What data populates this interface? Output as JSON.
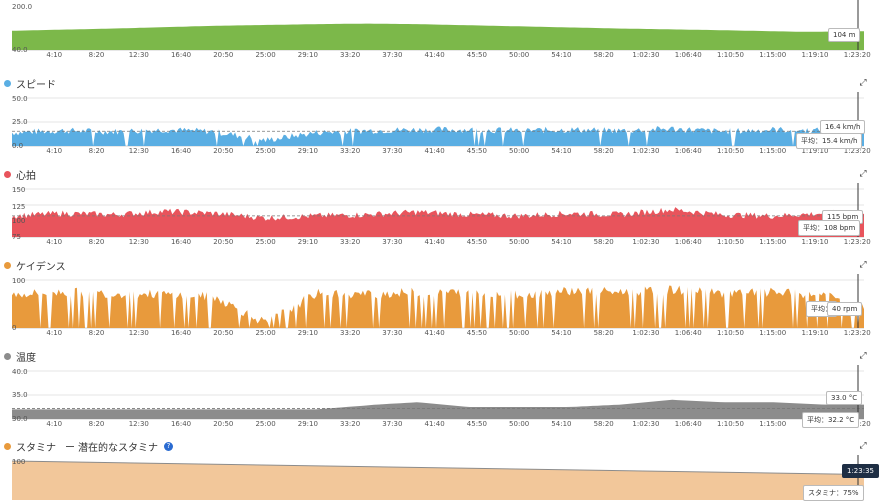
{
  "time_ticks": [
    "4:10",
    "8:20",
    "12:30",
    "16:40",
    "20:50",
    "25:00",
    "29:10",
    "33:20",
    "37:30",
    "41:40",
    "45:50",
    "50:00",
    "54:10",
    "58:20",
    "1:02:30",
    "1:06:40",
    "1:10:50",
    "1:15:00",
    "1:19:10",
    "1:23:20"
  ],
  "colors": {
    "elevation": "#7cb84a",
    "speed": "#5aaee3",
    "heart_rate": "#e8545c",
    "cadence": "#e89a3c",
    "temperature": "#8c8c8c",
    "stamina": "#f2c79a"
  },
  "panels": {
    "elevation": {
      "title": "",
      "y_max_label": "200.0",
      "y_min_label": "40.0",
      "tooltip": "104 m"
    },
    "speed": {
      "title": "スピード",
      "y_labels": [
        "50.0",
        "25.0",
        "0.0"
      ],
      "tooltip": "16.4 km/h",
      "avg_label": "平均：15.4 km/h"
    },
    "heart_rate": {
      "title": "心拍",
      "y_labels": [
        "150",
        "125",
        "100",
        "75"
      ],
      "tooltip": "115 bpm",
      "avg_label": "平均：108 bpm"
    },
    "cadence": {
      "title": "ケイデンス",
      "y_labels": [
        "100",
        "0"
      ],
      "tooltip": "40 rpm",
      "avg_label": "平均："
    },
    "temperature": {
      "title": "温度",
      "y_labels": [
        "40.0",
        "35.0",
        "30.0"
      ],
      "tooltip": "33.0 °C",
      "avg_label": "平均：32.2 °C"
    },
    "stamina": {
      "title": "スタミナ",
      "legend_potential": "潜在的なスタミナ",
      "help": "?",
      "y_label": "100",
      "time_tooltip": "1:23:35",
      "tooltip": "スタミナ：75%"
    }
  },
  "chart_data": [
    {
      "type": "area",
      "name": "elevation",
      "ylim": [
        40,
        200
      ],
      "unit": "m",
      "x": [
        "0:00",
        "10:00",
        "20:00",
        "30:00",
        "35:00",
        "40:00",
        "50:00",
        "1:00:00",
        "1:10:00",
        "1:18:00",
        "1:24:00"
      ],
      "y": [
        110,
        118,
        128,
        134,
        136,
        134,
        126,
        118,
        112,
        106,
        108
      ]
    },
    {
      "type": "area",
      "name": "speed",
      "ylim": [
        0,
        50
      ],
      "unit": "km/h",
      "average": 15.4,
      "x": [
        "0:00",
        "5:00",
        "10:00",
        "15:00",
        "20:00",
        "25:00",
        "30:00",
        "35:00",
        "40:00",
        "45:00",
        "50:00",
        "55:00",
        "1:00:00",
        "1:05:00",
        "1:10:00",
        "1:15:00",
        "1:20:00",
        "1:24:00"
      ],
      "y": [
        14,
        16,
        15,
        17,
        15,
        6,
        14,
        16,
        17,
        17,
        16,
        17,
        16,
        18,
        15,
        17,
        16,
        16
      ]
    },
    {
      "type": "area",
      "name": "heart_rate",
      "ylim": [
        75,
        150
      ],
      "unit": "bpm",
      "average": 108,
      "x": [
        "0:00",
        "5:00",
        "10:00",
        "15:00",
        "20:00",
        "25:00",
        "30:00",
        "35:00",
        "40:00",
        "45:00",
        "50:00",
        "55:00",
        "1:00:00",
        "1:05:00",
        "1:10:00",
        "1:15:00",
        "1:20:00",
        "1:24:00"
      ],
      "y": [
        108,
        112,
        110,
        115,
        112,
        105,
        108,
        110,
        114,
        110,
        108,
        112,
        110,
        118,
        110,
        108,
        112,
        115
      ]
    },
    {
      "type": "area",
      "name": "cadence",
      "ylim": [
        0,
        100
      ],
      "unit": "rpm",
      "x": [
        "0:00",
        "5:00",
        "10:00",
        "15:00",
        "20:00",
        "25:00",
        "30:00",
        "35:00",
        "40:00",
        "45:00",
        "50:00",
        "55:00",
        "1:00:00",
        "1:05:00",
        "1:10:00",
        "1:15:00",
        "1:20:00",
        "1:24:00"
      ],
      "y": [
        70,
        75,
        72,
        70,
        65,
        10,
        72,
        70,
        75,
        74,
        70,
        78,
        75,
        80,
        72,
        74,
        70,
        40
      ]
    },
    {
      "type": "area",
      "name": "temperature",
      "ylim": [
        30,
        40
      ],
      "unit": "°C",
      "average": 32.2,
      "x": [
        "0:00",
        "10:00",
        "20:00",
        "30:00",
        "36:00",
        "40:00",
        "45:00",
        "50:00",
        "55:00",
        "1:00:00",
        "1:05:00",
        "1:10:00",
        "1:15:00",
        "1:20:00",
        "1:24:00"
      ],
      "y": [
        32,
        32,
        32,
        32,
        33,
        33.5,
        32.5,
        32.5,
        32.5,
        33,
        34,
        33.5,
        33.5,
        33,
        33
      ]
    },
    {
      "type": "area",
      "name": "stamina",
      "ylim": [
        0,
        100
      ],
      "unit": "%",
      "x": [
        "0:00",
        "1:23:35"
      ],
      "y": [
        100,
        75
      ]
    }
  ]
}
